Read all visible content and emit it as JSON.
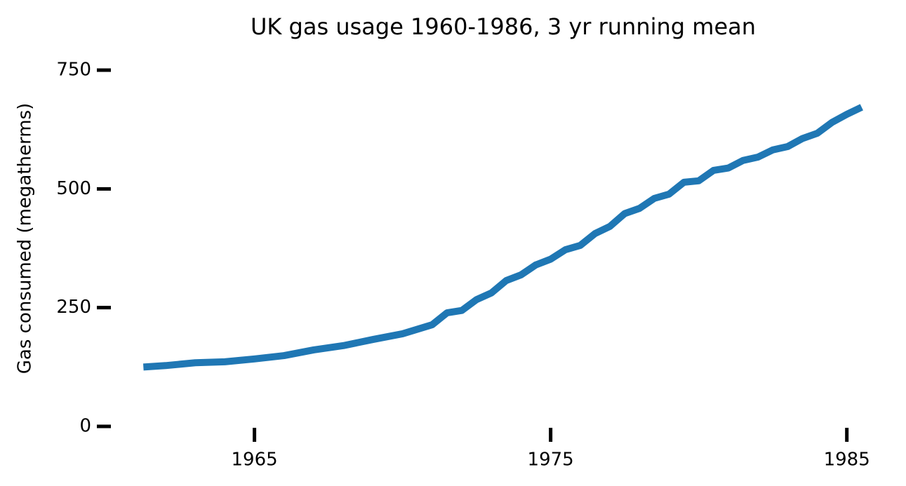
{
  "chart_data": {
    "type": "line",
    "title": "UK gas usage 1960-1986, 3 yr running mean",
    "y_label": "Gas consumed (megatherms)",
    "x": [
      1961.25,
      1962,
      1963,
      1964,
      1965,
      1966,
      1967,
      1968,
      1969,
      1970,
      1971,
      1971.5,
      1972,
      1972.5,
      1973,
      1973.5,
      1974,
      1974.5,
      1975,
      1975.5,
      1976,
      1976.5,
      1977,
      1977.5,
      1978,
      1978.5,
      1979,
      1979.5,
      1980,
      1980.5,
      1981,
      1981.5,
      1982,
      1982.5,
      1983,
      1983.5,
      1984,
      1984.5,
      1985,
      1985.5
    ],
    "series": [
      {
        "color": "#1f77b4",
        "values": [
          125,
          128,
          134,
          136,
          142,
          149,
          161,
          170,
          183,
          195,
          214,
          239,
          244,
          267,
          281,
          307,
          319,
          340,
          352,
          372,
          381,
          406,
          421,
          448,
          459,
          480,
          489,
          514,
          517,
          539,
          544,
          560,
          567,
          582,
          589,
          606,
          617,
          640,
          657,
          672
        ]
      }
    ],
    "xlim": [
      1960.2,
      1986.5
    ],
    "xticks": [
      1965,
      1975,
      1985
    ],
    "ylim": [
      0,
      750
    ],
    "yticks": [
      0,
      250,
      500,
      750
    ]
  }
}
